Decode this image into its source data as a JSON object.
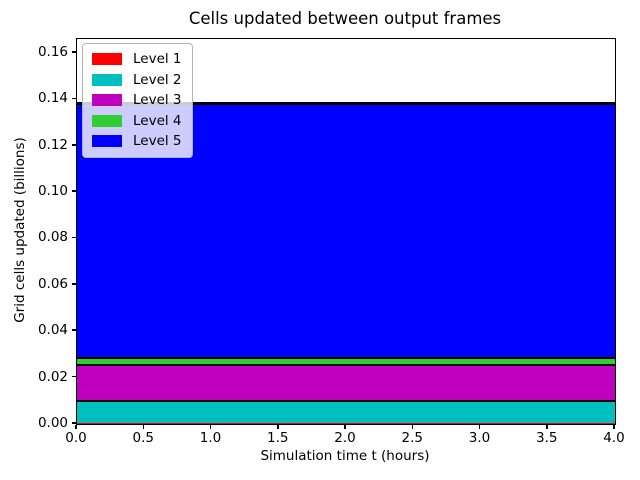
{
  "chart_data": {
    "type": "area",
    "stacked": true,
    "title": "Cells updated between output frames",
    "xlabel": "Simulation time t (hours)",
    "ylabel": "Grid cells updated (billions)",
    "x": [
      0.0,
      4.0
    ],
    "xlim": [
      0.0,
      4.0
    ],
    "ylim": [
      0.0,
      0.166
    ],
    "xticks": [
      "0.0",
      "0.5",
      "1.0",
      "1.5",
      "2.0",
      "2.5",
      "3.0",
      "3.5",
      "4.0"
    ],
    "yticks": [
      "0.00",
      "0.02",
      "0.04",
      "0.06",
      "0.08",
      "0.10",
      "0.12",
      "0.14",
      "0.16"
    ],
    "grid": false,
    "legend_position": "upper left",
    "edge_color": "#000000",
    "series": [
      {
        "name": "Level 1",
        "color": "#ff0000",
        "values": [
          0.0005,
          0.0005
        ]
      },
      {
        "name": "Level 2",
        "color": "#00bfbf",
        "values": [
          0.01,
          0.01
        ]
      },
      {
        "name": "Level 3",
        "color": "#bf00bf",
        "values": [
          0.0155,
          0.0155
        ]
      },
      {
        "name": "Level 4",
        "color": "#32cd32",
        "values": [
          0.003,
          0.003
        ]
      },
      {
        "name": "Level 5",
        "color": "#0000ff",
        "values": [
          0.11,
          0.11
        ]
      }
    ],
    "stack_cumulative_tops": [
      0.0005,
      0.0105,
      0.026,
      0.029,
      0.139
    ],
    "stack_total": 0.139
  }
}
